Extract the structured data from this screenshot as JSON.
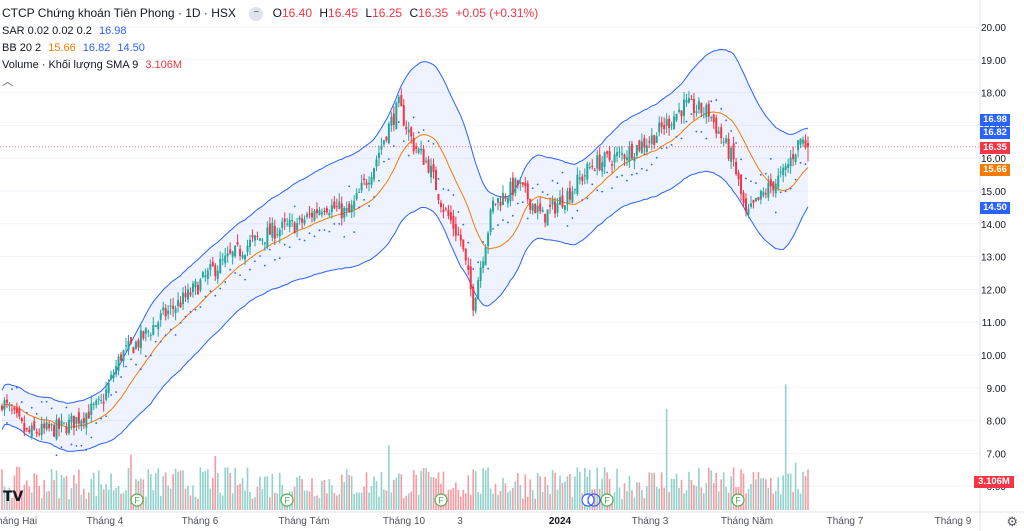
{
  "header": {
    "symbol_title": "CTCP Chứng khoán Tiên Phong · 1D · HSX",
    "ohlc": [
      {
        "k": "O",
        "v": "16.40"
      },
      {
        "k": "H",
        "v": "16.45"
      },
      {
        "k": "L",
        "v": "16.25"
      },
      {
        "k": "C",
        "v": "16.35"
      }
    ],
    "change": "+0.05 (+0.31%)",
    "menu_icon": "minus-icon"
  },
  "indicators": {
    "sar_label": "SAR 0.02 0.02 0.2",
    "sar_value": "16.98",
    "bb_label": "BB 20 2",
    "bb_basis": "15.66",
    "bb_upper": "16.82",
    "bb_lower": "14.50",
    "volume_label": "Volume · Khối lượng SMA 9",
    "volume_value": "3.106M"
  },
  "price_tags": {
    "sar": "16.98",
    "bb_upper": "16.82",
    "last": "16.35",
    "bb_basis": "15.66",
    "bb_lower": "14.50",
    "volume": "3.106M"
  },
  "colors": {
    "up": "#26a69a",
    "down": "#f23645",
    "sar": "#2962ff",
    "basis": "#f57c00",
    "band": "#2962ff",
    "last_price_line": "#f23645"
  },
  "icons": {
    "logo": "tradingview-logo-icon",
    "settings": "gear-icon",
    "event": "dividend-event-icon"
  },
  "chart_data": {
    "type": "candlestick",
    "y_axis": {
      "ticks": [
        "20.00",
        "19.00",
        "18.00",
        "17.00",
        "16.00",
        "15.00",
        "14.00",
        "13.00",
        "12.00",
        "11.00",
        "10.00",
        "9.00",
        "8.00",
        "7.00",
        "6.00"
      ],
      "range": [
        5.5,
        20.5
      ]
    },
    "x_axis": {
      "labels": [
        "Tháng Hai",
        "Tháng 4",
        "Tháng 6",
        "Tháng Tám",
        "Tháng 10",
        "3",
        "2024",
        "Tháng 3",
        "Tháng Năm",
        "Tháng 7",
        "Tháng 9"
      ]
    },
    "close_path": [
      [
        0,
        8.6
      ],
      [
        10,
        7.6
      ],
      [
        25,
        7.8
      ],
      [
        40,
        8.5
      ],
      [
        48,
        10.0
      ],
      [
        55,
        10.4
      ],
      [
        65,
        11.2
      ],
      [
        75,
        11.8
      ],
      [
        85,
        12.6
      ],
      [
        100,
        13.4
      ],
      [
        110,
        13.8
      ],
      [
        120,
        14.0
      ],
      [
        130,
        14.6
      ],
      [
        140,
        14.3
      ],
      [
        150,
        15.8
      ],
      [
        155,
        16.8
      ],
      [
        160,
        17.6
      ],
      [
        166,
        16.4
      ],
      [
        172,
        15.8
      ],
      [
        178,
        14.5
      ],
      [
        185,
        13.5
      ],
      [
        190,
        11.6
      ],
      [
        198,
        14.6
      ],
      [
        208,
        15.2
      ],
      [
        218,
        14.2
      ],
      [
        228,
        14.9
      ],
      [
        238,
        15.8
      ],
      [
        250,
        16.1
      ],
      [
        262,
        16.6
      ],
      [
        275,
        17.6
      ],
      [
        285,
        17.4
      ],
      [
        295,
        15.9
      ],
      [
        300,
        14.2
      ],
      [
        308,
        15.0
      ],
      [
        315,
        15.5
      ],
      [
        322,
        16.6
      ],
      [
        325,
        16.35
      ]
    ],
    "band_half_width_path": [
      [
        0,
        0.6
      ],
      [
        40,
        0.8
      ],
      [
        60,
        1.5
      ],
      [
        100,
        1.3
      ],
      [
        150,
        1.8
      ],
      [
        166,
        2.2
      ],
      [
        185,
        2.3
      ],
      [
        205,
        1.3
      ],
      [
        240,
        1.2
      ],
      [
        275,
        1.5
      ],
      [
        295,
        2.1
      ],
      [
        315,
        1.8
      ],
      [
        325,
        1.2
      ]
    ],
    "volume_axis_max": 10.0,
    "volume_spikes": {
      "52": 4.1,
      "86": 4.0,
      "156": 4.8,
      "190": 3.0,
      "268": 7.5,
      "316": 9.3,
      "320": 3.5
    },
    "events": [
      "F",
      "F",
      "F",
      "I",
      "F",
      "F"
    ],
    "last_close": 16.35,
    "bars_visible": 326
  }
}
